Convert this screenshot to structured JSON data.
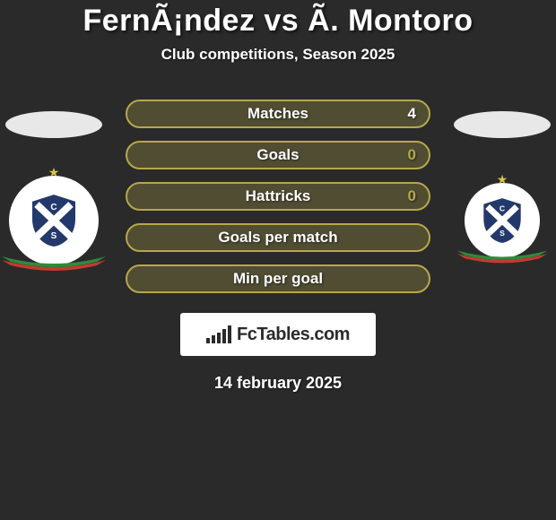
{
  "title": "FernÃ¡ndez vs Ã. Montoro",
  "subtitle": "Club competitions, Season 2025",
  "date": "14 february 2025",
  "background_color": "#2a2a2a",
  "row_border_color": "#b6a84a",
  "row_fill_color": "#6f6a3a",
  "row_fill_opacity": 0.55,
  "text_color": "#ffffff",
  "rows": [
    {
      "label": "Matches",
      "right": "4",
      "right_color": "#ffffff"
    },
    {
      "label": "Goals",
      "right": "0",
      "right_color": "#b6a84a"
    },
    {
      "label": "Hattricks",
      "right": "0",
      "right_color": "#b6a84a"
    },
    {
      "label": "Goals per match",
      "right": "",
      "right_color": "#ffffff"
    },
    {
      "label": "Min per goal",
      "right": "",
      "right_color": "#ffffff"
    }
  ],
  "left_ellipse_color": "#e8e8e8",
  "right_ellipse_color": "#e8e8e8",
  "shield_blue": "#23396b",
  "shield_white": "#ffffff",
  "ribbon_green": "#2e8b3d",
  "ribbon_red": "#c23b2e",
  "star_color": "#d8c24a",
  "fctables_label": "FcTables.com",
  "fctables_bar_heights": [
    6,
    9,
    12,
    16,
    20
  ]
}
